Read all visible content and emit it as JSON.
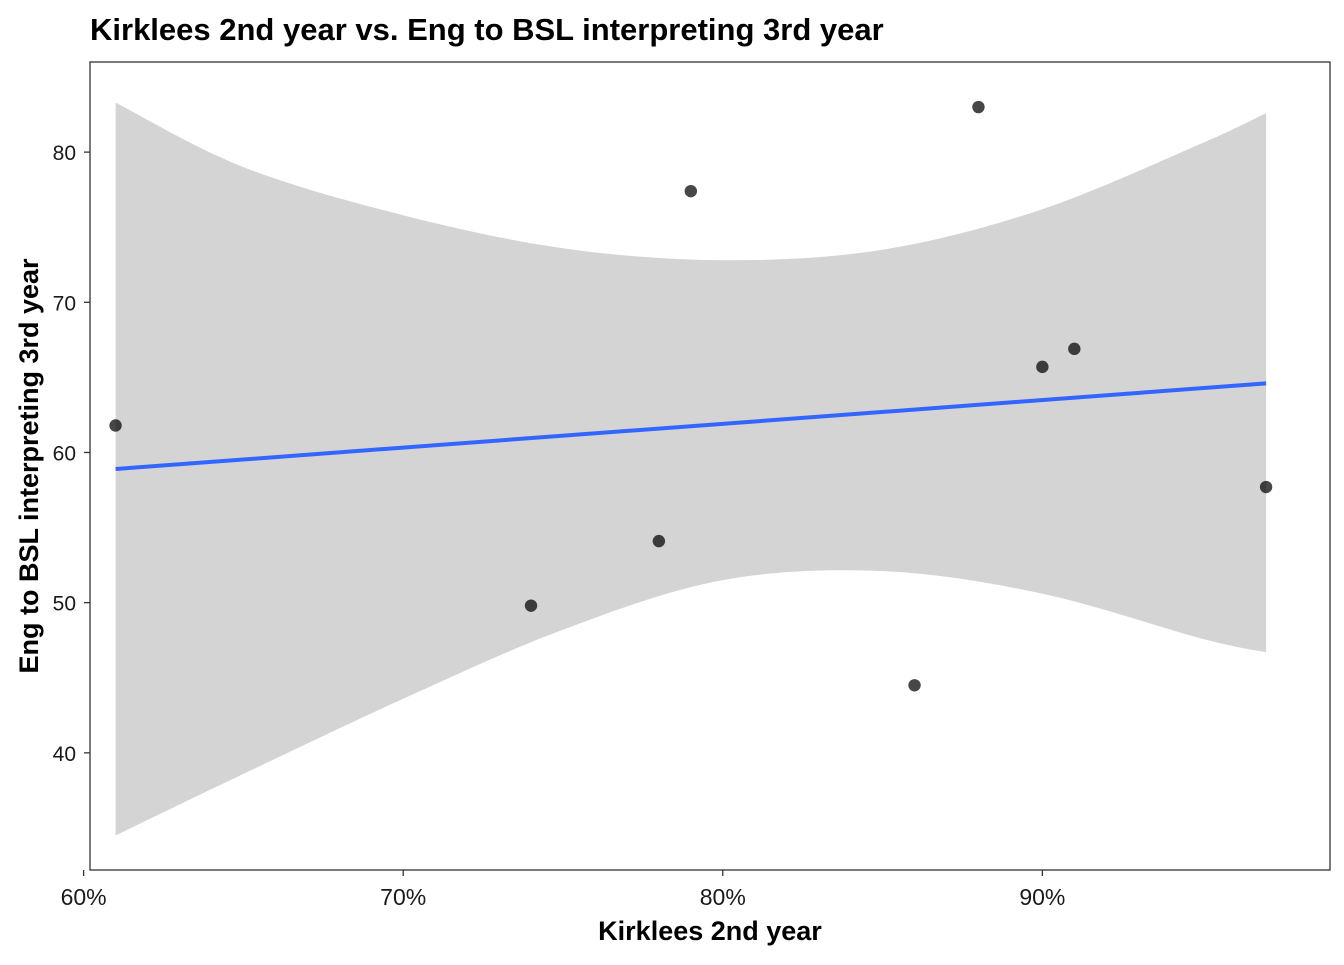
{
  "chart_data": {
    "type": "scatter",
    "title": "Kirklees 2nd year vs. Eng to BSL interpreting 3rd year",
    "xlabel": "Kirklees 2nd year",
    "ylabel": "Eng to BSL interpreting 3rd year",
    "xlim": [
      0.602,
      0.99
    ],
    "ylim": [
      32.2,
      86.0
    ],
    "x_ticks": [
      0.6,
      0.7,
      0.8,
      0.9
    ],
    "x_tick_labels": [
      "60%",
      "70%",
      "80%",
      "90%"
    ],
    "y_ticks": [
      40,
      50,
      60,
      70,
      80
    ],
    "y_tick_labels": [
      "40",
      "50",
      "60",
      "70",
      "80"
    ],
    "grid": false,
    "points": [
      {
        "x": 0.61,
        "y": 61.8
      },
      {
        "x": 0.74,
        "y": 49.8
      },
      {
        "x": 0.78,
        "y": 54.1
      },
      {
        "x": 0.79,
        "y": 77.4
      },
      {
        "x": 0.86,
        "y": 44.5
      },
      {
        "x": 0.88,
        "y": 83.0
      },
      {
        "x": 0.9,
        "y": 65.7
      },
      {
        "x": 0.91,
        "y": 66.9
      },
      {
        "x": 0.97,
        "y": 57.7
      }
    ],
    "trend_line": {
      "method": "linear fit",
      "x": [
        0.61,
        0.97
      ],
      "y": [
        58.9,
        64.6
      ],
      "color": "#3366FF"
    },
    "confidence_band": {
      "color": "#D4D4D4",
      "x": [
        0.61,
        0.65,
        0.7,
        0.75,
        0.8,
        0.85,
        0.9,
        0.95,
        0.97
      ],
      "upper": [
        83.3,
        79.0,
        75.8,
        73.6,
        72.8,
        73.5,
        76.2,
        80.6,
        82.6
      ],
      "lower": [
        34.5,
        38.6,
        43.6,
        48.2,
        51.5,
        52.1,
        50.6,
        47.6,
        46.7
      ]
    },
    "point_color": "#000000"
  }
}
